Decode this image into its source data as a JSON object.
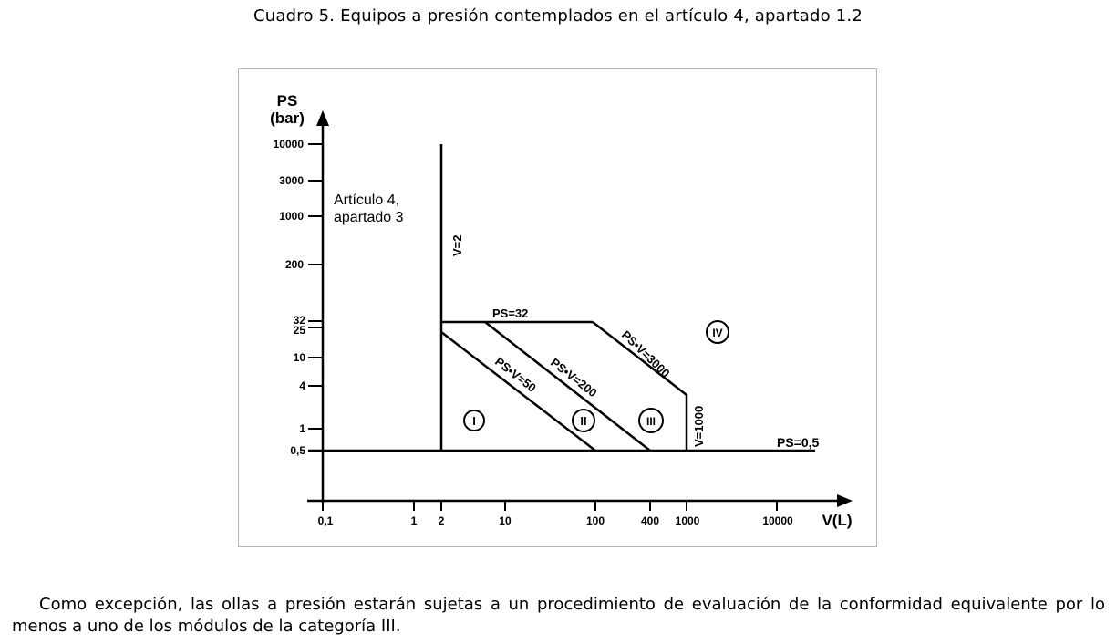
{
  "document": {
    "caption": "Cuadro 5. Equipos a presión contemplados en el artículo 4, apartado 1.2",
    "paragraph": "Como excepción, las ollas a presión estarán sujetas a un procedimiento de evaluación de la conformidad equivalente por lo menos a uno de los módulos de la categoría III."
  },
  "chart_data": {
    "type": "diagram",
    "y_axis": {
      "label_line1": "PS",
      "label_line2": "(bar)",
      "scale": "log",
      "ticks": [
        "10000",
        "3000",
        "1000",
        "200",
        "32",
        "25",
        "10",
        "4",
        "1",
        "0,5"
      ]
    },
    "x_axis": {
      "label": "V(L)",
      "scale": "log",
      "ticks": [
        "0,1",
        "1",
        "2",
        "10",
        "100",
        "400",
        "1000",
        "10000"
      ]
    },
    "region_label_line1": "Artículo 4,",
    "region_label_line2": "apartado 3",
    "boundaries": {
      "v2": "V=2",
      "ps32": "PS=32",
      "psv50": "PS•V=50",
      "psv200": "PS•V=200",
      "psv3000": "PS•V=3000",
      "v1000": "V=1000",
      "ps05": "PS=0,5"
    },
    "categories": [
      "I",
      "II",
      "III",
      "IV"
    ]
  }
}
